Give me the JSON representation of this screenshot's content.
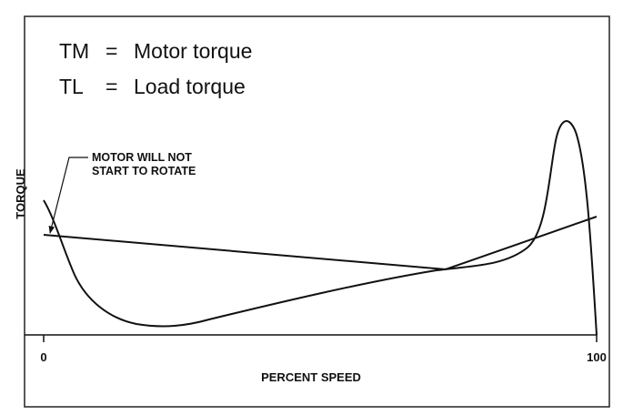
{
  "legend": [
    {
      "abbr": "TM",
      "sign": "=",
      "label": "Motor torque"
    },
    {
      "abbr": "TL",
      "sign": "=",
      "label": "Load torque"
    }
  ],
  "annotation": {
    "lines": [
      "MOTOR WILL NOT",
      "START TO ROTATE"
    ]
  },
  "axes": {
    "y_label": "TORQUE",
    "x_label": "PERCENT SPEED",
    "x_ticks": [
      "0",
      "100"
    ]
  }
}
